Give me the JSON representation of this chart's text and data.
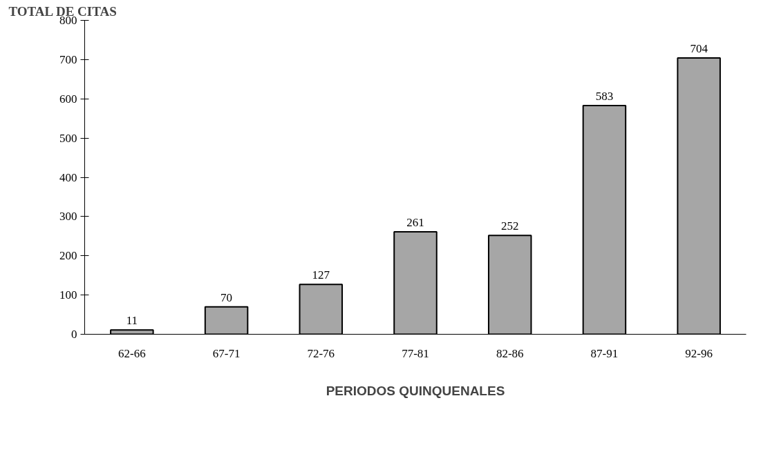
{
  "chart_data": {
    "type": "bar",
    "ylabel": "TOTAL DE CITAS",
    "xlabel": "PERIODOS QUINQUENALES",
    "categories": [
      "62-66",
      "67-71",
      "72-76",
      "77-81",
      "82-86",
      "87-91",
      "92-96"
    ],
    "values": [
      11,
      70,
      127,
      261,
      252,
      583,
      704
    ],
    "color": "#a6a6a6",
    "ylim": [
      0,
      800
    ],
    "yticks": [
      0,
      100,
      200,
      300,
      400,
      500,
      600,
      700,
      800
    ],
    "grid": false,
    "data_labels": true
  }
}
